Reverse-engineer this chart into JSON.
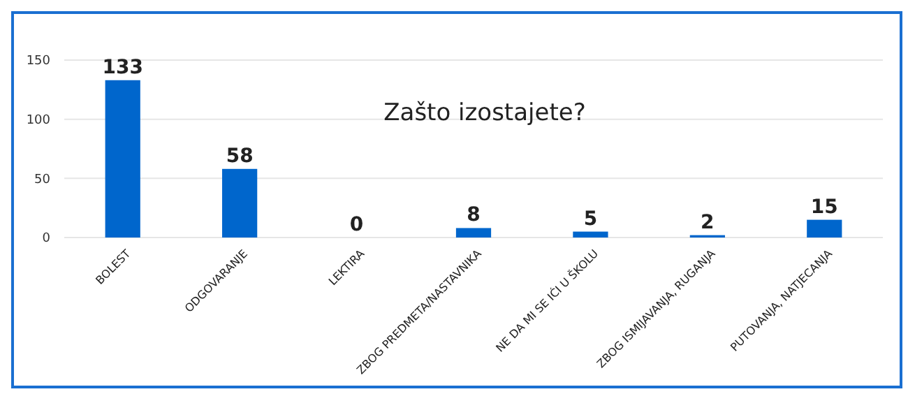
{
  "chart_data": {
    "type": "bar",
    "title": "Zašto izostajete?",
    "categories": [
      "BOLEST",
      "ODGOVARANJE",
      "LEKTIRA",
      "ZBOG PREDMETA/NASTAVNIKA",
      "NE DA MI SE IĆI U ŠKOLU",
      "ZBOG ISMIJAVANJA, RUGANJA",
      "PUTOVANJA, NATJECANJA"
    ],
    "values": [
      133,
      58,
      0,
      8,
      5,
      2,
      15
    ],
    "color": "#0066cc",
    "ylim": [
      0,
      150
    ],
    "yticks": [
      0,
      50,
      100,
      150
    ],
    "grid": "y",
    "data_labels": true
  }
}
